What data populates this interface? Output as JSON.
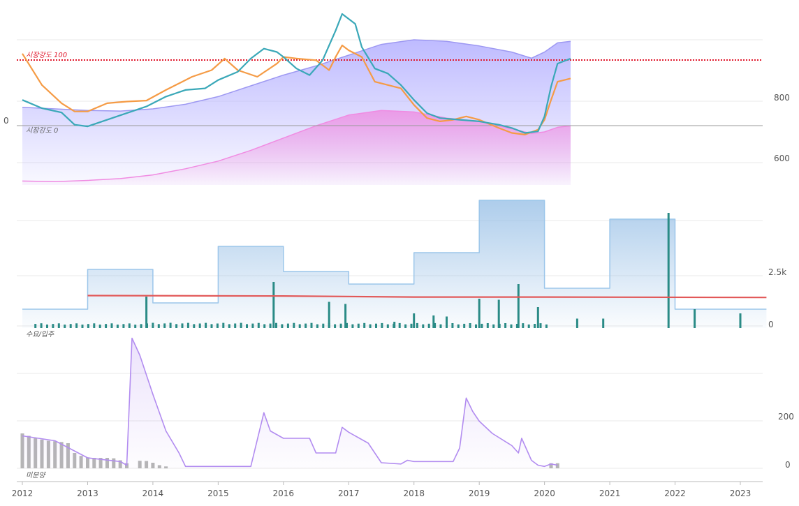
{
  "colors": {
    "blue_line": "#3aa8b8",
    "orange_line": "#f59b45",
    "purple_area": "#b7b3ff",
    "pink_area": "#ef86df",
    "ref_red": "#e0182c",
    "supply_area": "#9fc4e8",
    "bar_teal": "#2a8b86",
    "red_line": "#e25858",
    "unsold_line": "#b28cf0",
    "unsold_bars": "#b5b5b5",
    "grid": "#e8e8e8"
  },
  "x_axis": {
    "ticks": [
      "2012",
      "2013",
      "2014",
      "2015",
      "2016",
      "2017",
      "2018",
      "2019",
      "2020",
      "2021",
      "2022",
      "2023"
    ]
  },
  "panel_top": {
    "ref_100_label": "시장강도 100",
    "ref_0_label": "시장강도 0",
    "left_tick": "0",
    "right_ticks": [
      "800",
      "600"
    ]
  },
  "panel_mid": {
    "label": "수요/입주",
    "right_ticks": [
      "2.5k",
      "0"
    ]
  },
  "panel_bot": {
    "label": "미분양",
    "right_ticks": [
      "200",
      "0"
    ]
  },
  "chart_data": [
    {
      "type": "line",
      "x_range": [
        2012.0,
        2023.4
      ],
      "y_right_ticks": [
        600,
        800
      ],
      "annotations": [
        "시장강도 100",
        "시장강도 0"
      ],
      "series": [
        {
          "color": "blue",
          "points": [
            [
              2012.0,
              120
            ],
            [
              2012.3,
              95
            ],
            [
              2012.6,
              82
            ],
            [
              2012.8,
              45
            ],
            [
              2013.0,
              40
            ],
            [
              2013.3,
              60
            ],
            [
              2013.6,
              80
            ],
            [
              2013.9,
              100
            ],
            [
              2014.2,
              130
            ],
            [
              2014.5,
              150
            ],
            [
              2014.8,
              155
            ],
            [
              2015.0,
              180
            ],
            [
              2015.3,
              205
            ],
            [
              2015.5,
              245
            ],
            [
              2015.7,
              275
            ],
            [
              2015.9,
              265
            ],
            [
              2016.0,
              250
            ],
            [
              2016.2,
              215
            ],
            [
              2016.4,
              195
            ],
            [
              2016.6,
              240
            ],
            [
              2016.8,
              330
            ],
            [
              2016.9,
              380
            ],
            [
              2017.0,
              365
            ],
            [
              2017.1,
              350
            ],
            [
              2017.2,
              280
            ],
            [
              2017.4,
              215
            ],
            [
              2017.6,
              200
            ],
            [
              2017.8,
              165
            ],
            [
              2018.0,
              120
            ],
            [
              2018.2,
              80
            ],
            [
              2018.4,
              65
            ],
            [
              2018.7,
              60
            ],
            [
              2019.0,
              55
            ],
            [
              2019.3,
              45
            ],
            [
              2019.5,
              35
            ],
            [
              2019.7,
              20
            ],
            [
              2019.9,
              25
            ],
            [
              2020.0,
              70
            ],
            [
              2020.1,
              160
            ],
            [
              2020.2,
              230
            ],
            [
              2020.4,
              245
            ]
          ]
        },
        {
          "color": "orange",
          "points": [
            [
              2012.0,
              260
            ],
            [
              2012.3,
              165
            ],
            [
              2012.6,
              110
            ],
            [
              2012.8,
              85
            ],
            [
              2013.0,
              85
            ],
            [
              2013.3,
              110
            ],
            [
              2013.6,
              115
            ],
            [
              2013.9,
              118
            ],
            [
              2014.2,
              150
            ],
            [
              2014.4,
              170
            ],
            [
              2014.6,
              190
            ],
            [
              2014.9,
              210
            ],
            [
              2015.1,
              245
            ],
            [
              2015.3,
              210
            ],
            [
              2015.6,
              190
            ],
            [
              2015.9,
              230
            ],
            [
              2016.0,
              250
            ],
            [
              2016.2,
              245
            ],
            [
              2016.5,
              240
            ],
            [
              2016.7,
              210
            ],
            [
              2016.8,
              250
            ],
            [
              2016.9,
              285
            ],
            [
              2017.0,
              270
            ],
            [
              2017.2,
              250
            ],
            [
              2017.4,
              175
            ],
            [
              2017.6,
              165
            ],
            [
              2017.8,
              155
            ],
            [
              2018.0,
              105
            ],
            [
              2018.2,
              65
            ],
            [
              2018.4,
              55
            ],
            [
              2018.6,
              60
            ],
            [
              2018.8,
              70
            ],
            [
              2019.0,
              60
            ],
            [
              2019.3,
              35
            ],
            [
              2019.5,
              20
            ],
            [
              2019.7,
              15
            ],
            [
              2019.9,
              30
            ],
            [
              2020.0,
              60
            ],
            [
              2020.1,
              120
            ],
            [
              2020.2,
              175
            ],
            [
              2020.4,
              185
            ]
          ]
        },
        {
          "color": "purple_area",
          "points": [
            [
              2012.0,
              780
            ],
            [
              2012.5,
              775
            ],
            [
              2013.0,
              770
            ],
            [
              2013.5,
              768
            ],
            [
              2014.0,
              775
            ],
            [
              2014.5,
              790
            ],
            [
              2015.0,
              815
            ],
            [
              2015.5,
              850
            ],
            [
              2016.0,
              885
            ],
            [
              2016.5,
              915
            ],
            [
              2017.0,
              950
            ],
            [
              2017.5,
              985
            ],
            [
              2018.0,
              1000
            ],
            [
              2018.5,
              995
            ],
            [
              2019.0,
              980
            ],
            [
              2019.5,
              960
            ],
            [
              2019.8,
              940
            ],
            [
              2020.0,
              960
            ],
            [
              2020.2,
              990
            ],
            [
              2020.4,
              995
            ]
          ]
        },
        {
          "color": "pink_area",
          "points": [
            [
              2012.0,
              540
            ],
            [
              2012.5,
              538
            ],
            [
              2013.0,
              542
            ],
            [
              2013.5,
              548
            ],
            [
              2014.0,
              560
            ],
            [
              2014.5,
              580
            ],
            [
              2015.0,
              605
            ],
            [
              2015.5,
              640
            ],
            [
              2016.0,
              680
            ],
            [
              2016.5,
              720
            ],
            [
              2017.0,
              755
            ],
            [
              2017.5,
              770
            ],
            [
              2018.0,
              765
            ],
            [
              2018.5,
              745
            ],
            [
              2019.0,
              735
            ],
            [
              2019.5,
              710
            ],
            [
              2019.8,
              695
            ],
            [
              2020.0,
              700
            ],
            [
              2020.2,
              715
            ],
            [
              2020.4,
              720
            ]
          ]
        }
      ]
    },
    {
      "type": "bar",
      "y_right_ticks": [
        0,
        2500
      ],
      "series": [
        {
          "name_hidden": true,
          "kind": "supply_step",
          "points": [
            [
              2012.0,
              800
            ],
            [
              2013.0,
              800
            ],
            [
              2013.0,
              2700
            ],
            [
              2014.0,
              2700
            ],
            [
              2014.0,
              1100
            ],
            [
              2015.0,
              1100
            ],
            [
              2015.0,
              3800
            ],
            [
              2016.0,
              3800
            ],
            [
              2016.0,
              2600
            ],
            [
              2017.0,
              2600
            ],
            [
              2017.0,
              2000
            ],
            [
              2018.0,
              2000
            ],
            [
              2018.0,
              3500
            ],
            [
              2019.0,
              3500
            ],
            [
              2019.0,
              6000
            ],
            [
              2020.0,
              6000
            ],
            [
              2020.0,
              1800
            ],
            [
              2021.0,
              1800
            ],
            [
              2021.0,
              5100
            ],
            [
              2022.0,
              5100
            ],
            [
              2022.0,
              800
            ],
            [
              2023.4,
              800
            ]
          ]
        },
        {
          "kind": "demand_line",
          "points": [
            [
              2013.0,
              1450
            ],
            [
              2016.0,
              1430
            ],
            [
              2018.0,
              1380
            ],
            [
              2020.0,
              1380
            ],
            [
              2023.4,
              1360
            ]
          ]
        },
        {
          "kind": "move_in_bars",
          "points": [
            [
              2013.9,
              1400
            ],
            [
              2015.85,
              2100
            ],
            [
              2016.7,
              1150
            ],
            [
              2016.95,
              1050
            ],
            [
              2017.7,
              200
            ],
            [
              2018.0,
              600
            ],
            [
              2018.3,
              500
            ],
            [
              2018.5,
              450
            ],
            [
              2019.0,
              1300
            ],
            [
              2019.3,
              1250
            ],
            [
              2019.6,
              2000
            ],
            [
              2019.9,
              900
            ],
            [
              2020.5,
              350
            ],
            [
              2020.9,
              350
            ],
            [
              2021.9,
              5400
            ],
            [
              2022.3,
              800
            ],
            [
              2023.0,
              600
            ]
          ]
        }
      ]
    },
    {
      "type": "line",
      "y_right_ticks": [
        0,
        200
      ],
      "series": [
        {
          "kind": "unsold_line",
          "points": [
            [
              2012.0,
              130
            ],
            [
              2012.5,
              110
            ],
            [
              2013.0,
              40
            ],
            [
              2013.5,
              25
            ],
            [
              2013.6,
              10
            ],
            [
              2013.68,
              530
            ],
            [
              2013.8,
              460
            ],
            [
              2014.0,
              300
            ],
            [
              2014.2,
              150
            ],
            [
              2014.4,
              60
            ],
            [
              2014.5,
              5
            ],
            [
              2015.0,
              5
            ],
            [
              2015.5,
              5
            ],
            [
              2015.7,
              225
            ],
            [
              2015.8,
              150
            ],
            [
              2016.0,
              120
            ],
            [
              2016.4,
              120
            ],
            [
              2016.5,
              60
            ],
            [
              2016.8,
              60
            ],
            [
              2016.9,
              165
            ],
            [
              2017.0,
              145
            ],
            [
              2017.3,
              100
            ],
            [
              2017.5,
              20
            ],
            [
              2017.8,
              15
            ],
            [
              2017.9,
              30
            ],
            [
              2018.0,
              25
            ],
            [
              2018.6,
              25
            ],
            [
              2018.7,
              80
            ],
            [
              2018.8,
              285
            ],
            [
              2018.9,
              230
            ],
            [
              2019.0,
              190
            ],
            [
              2019.2,
              140
            ],
            [
              2019.5,
              90
            ],
            [
              2019.6,
              60
            ],
            [
              2019.65,
              120
            ],
            [
              2019.8,
              30
            ],
            [
              2019.9,
              10
            ],
            [
              2020.0,
              5
            ],
            [
              2020.1,
              15
            ],
            [
              2020.2,
              10
            ]
          ]
        },
        {
          "kind": "unsold_bars",
          "points": [
            [
              2012.0,
              140
            ],
            [
              2012.1,
              130
            ],
            [
              2012.2,
              120
            ],
            [
              2012.3,
              115
            ],
            [
              2012.4,
              110
            ],
            [
              2012.5,
              108
            ],
            [
              2012.6,
              105
            ],
            [
              2012.7,
              100
            ],
            [
              2012.8,
              60
            ],
            [
              2012.9,
              48
            ],
            [
              2013.0,
              42
            ],
            [
              2013.1,
              40
            ],
            [
              2013.2,
              40
            ],
            [
              2013.3,
              40
            ],
            [
              2013.4,
              38
            ],
            [
              2013.5,
              30
            ],
            [
              2013.6,
              18
            ],
            [
              2013.8,
              28
            ],
            [
              2013.9,
              27
            ],
            [
              2014.0,
              20
            ],
            [
              2014.1,
              10
            ],
            [
              2014.2,
              5
            ],
            [
              2020.1,
              18
            ],
            [
              2020.2,
              18
            ]
          ]
        }
      ]
    }
  ]
}
